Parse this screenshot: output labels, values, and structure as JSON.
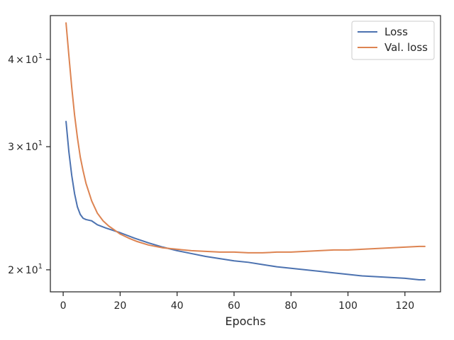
{
  "chart_data": {
    "type": "line",
    "title": "",
    "xlabel": "Epochs",
    "ylabel": "",
    "xlim": [
      -4.5,
      132.5
    ],
    "ylim": [
      18.6,
      46.2
    ],
    "yscale": "log",
    "grid": false,
    "legend_placement": "top-right",
    "x_ticks": [
      0,
      20,
      40,
      60,
      80,
      100,
      120
    ],
    "x_tick_labels": [
      "0",
      "20",
      "40",
      "60",
      "80",
      "100",
      "120"
    ],
    "y_ticks": [
      20,
      30,
      40
    ],
    "y_tick_labels": [
      {
        "mantissa": "2",
        "times": "×",
        "base": "10",
        "exponent": "1"
      },
      {
        "mantissa": "3",
        "times": "×",
        "base": "10",
        "exponent": "1"
      },
      {
        "mantissa": "4",
        "times": "×",
        "base": "10",
        "exponent": "1"
      }
    ],
    "series": [
      {
        "name": "Loss",
        "color": "#4c72b0",
        "x": [
          1,
          2,
          3,
          4,
          5,
          6,
          7,
          8,
          10,
          12,
          15,
          20,
          25,
          30,
          35,
          40,
          45,
          50,
          55,
          60,
          65,
          70,
          75,
          80,
          85,
          90,
          95,
          100,
          105,
          110,
          115,
          120,
          125,
          127
        ],
        "y": [
          32.6,
          29.5,
          27.3,
          25.7,
          24.6,
          24.0,
          23.7,
          23.6,
          23.5,
          23.2,
          22.95,
          22.6,
          22.2,
          21.85,
          21.55,
          21.3,
          21.1,
          20.9,
          20.75,
          20.6,
          20.5,
          20.35,
          20.2,
          20.1,
          20.0,
          19.9,
          19.8,
          19.7,
          19.6,
          19.55,
          19.5,
          19.45,
          19.35,
          19.35
        ]
      },
      {
        "name": "Val. loss",
        "color": "#dd8452",
        "x": [
          1,
          2,
          3,
          4,
          5,
          6,
          7,
          8,
          10,
          12,
          14,
          16,
          18,
          20,
          23,
          26,
          30,
          35,
          40,
          45,
          50,
          55,
          60,
          65,
          70,
          75,
          80,
          85,
          90,
          95,
          100,
          105,
          110,
          115,
          120,
          125,
          127
        ],
        "y": [
          45.1,
          40.5,
          36.5,
          33.3,
          30.9,
          29.0,
          27.7,
          26.6,
          25.1,
          24.1,
          23.5,
          23.1,
          22.8,
          22.5,
          22.2,
          21.95,
          21.7,
          21.5,
          21.4,
          21.3,
          21.25,
          21.2,
          21.2,
          21.15,
          21.15,
          21.2,
          21.2,
          21.25,
          21.3,
          21.35,
          21.35,
          21.4,
          21.45,
          21.5,
          21.55,
          21.6,
          21.6
        ]
      }
    ]
  }
}
